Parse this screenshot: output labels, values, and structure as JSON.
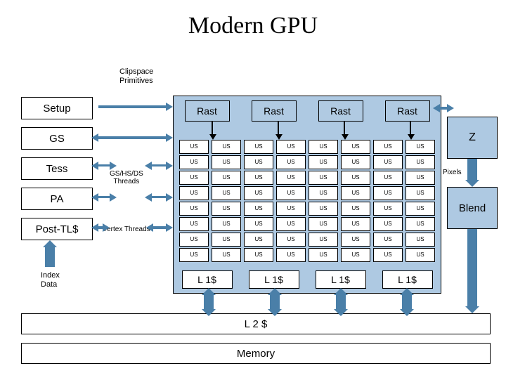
{
  "title": "Modern GPU",
  "clipspace": "Clipspace\nPrimitives",
  "stages": {
    "setup": "Setup",
    "gs": "GS",
    "tess": "Tess",
    "pa": "PA",
    "posttl": "Post-TL$"
  },
  "rast": "Rast",
  "us": "US",
  "l1": "L 1$",
  "z": "Z",
  "blend": "Blend",
  "pixels": "Pixels",
  "l2": "L 2 $",
  "memory": "Memory",
  "threads": {
    "gshs": "GS/HS/DS\nThreads",
    "vertex": "Vertex Threads"
  },
  "index": "Index\nData",
  "colors": {
    "block": "#aec9e2",
    "arrow": "#4a7fa8"
  },
  "layout": {
    "rast_count": 4,
    "us_rows": 8,
    "us_cols": 8,
    "l1_count": 4
  }
}
